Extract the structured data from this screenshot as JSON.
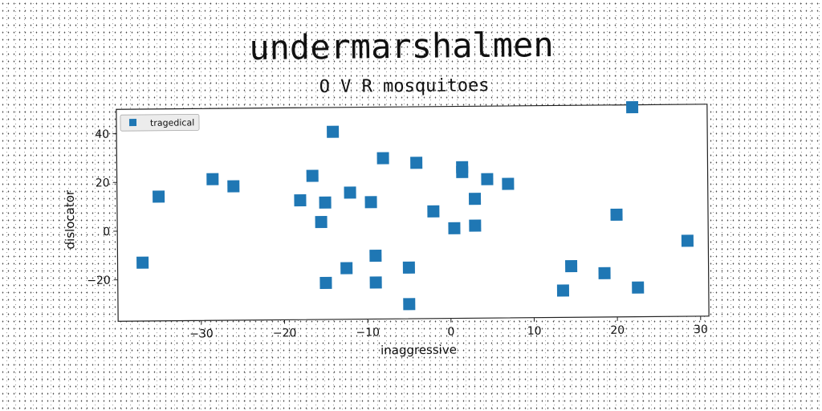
{
  "figure": {
    "suptitle": "undermarshalmen"
  },
  "chart_data": {
    "type": "scatter",
    "title": "O V R mosquitoes",
    "xlabel": "inaggressive",
    "ylabel": "dislocator",
    "xlim": [
      -40,
      31
    ],
    "ylim": [
      -37,
      50
    ],
    "xticks": [
      -30,
      -20,
      -10,
      0,
      10,
      20,
      30
    ],
    "yticks": [
      -20,
      0,
      20,
      40
    ],
    "grid": false,
    "legend_position": "top-left",
    "marker": "square",
    "series": [
      {
        "name": "tragedical",
        "color": "#1f77b4",
        "points": [
          [
            -37,
            -13
          ],
          [
            -35,
            14
          ],
          [
            -28.5,
            21
          ],
          [
            -26,
            18
          ],
          [
            -18,
            12
          ],
          [
            -16.5,
            22
          ],
          [
            -15.5,
            3
          ],
          [
            -15,
            11
          ],
          [
            -15,
            -22
          ],
          [
            -14,
            40
          ],
          [
            -12.5,
            -16
          ],
          [
            -12,
            15
          ],
          [
            -9.5,
            11
          ],
          [
            -9,
            -22
          ],
          [
            -9,
            -11
          ],
          [
            -8,
            29
          ],
          [
            -5,
            -16
          ],
          [
            -5,
            -31
          ],
          [
            -4,
            27
          ],
          [
            -2,
            7
          ],
          [
            0.5,
            0
          ],
          [
            1.5,
            25
          ],
          [
            1.5,
            23
          ],
          [
            3,
            12
          ],
          [
            3,
            1
          ],
          [
            4.5,
            20
          ],
          [
            7,
            18
          ],
          [
            13.5,
            -26
          ],
          [
            14.5,
            -16
          ],
          [
            18.5,
            -19
          ],
          [
            20,
            5
          ],
          [
            22,
            49
          ],
          [
            22.5,
            -25
          ],
          [
            28.5,
            -6
          ]
        ]
      }
    ]
  }
}
